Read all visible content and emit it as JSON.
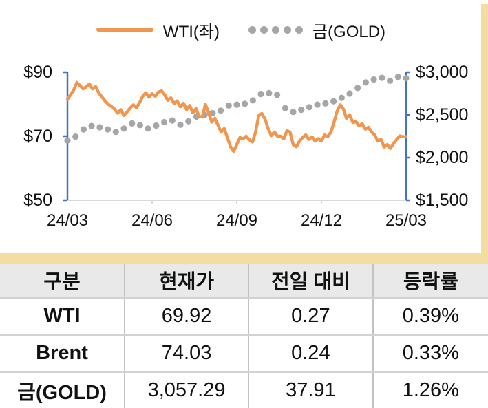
{
  "colors": {
    "wti": "#F0964F",
    "gold_dot": "#A6A6A6",
    "axis_blue": "#4472C4",
    "axis_gray": "#D9D9D9",
    "band_beige": "#F3DDA0",
    "header_bg": "#E9E9E9"
  },
  "legend": {
    "wti_label": "WTI(좌)",
    "gold_label": "금(GOLD)"
  },
  "chart_data": {
    "type": "line",
    "title": "",
    "legend_position": "top",
    "grid": false,
    "x_ticks": [
      "24/03",
      "24/06",
      "24/09",
      "24/12",
      "25/03"
    ],
    "left_axis": {
      "labels": [
        "$90",
        "$70",
        "$50"
      ],
      "min": 50,
      "max": 90
    },
    "right_axis": {
      "labels": [
        "$3,000",
        "$2,500",
        "$2,000",
        "$1,500"
      ],
      "min": 1500,
      "max": 3000
    },
    "series": [
      {
        "name": "WTI(좌)",
        "axis": "left",
        "style": "line",
        "color": "#F0964F",
        "values": [
          81.5,
          83.0,
          84.5,
          86.8,
          85.8,
          84.8,
          85.5,
          86.3,
          84.8,
          85.5,
          83.5,
          82.3,
          81.0,
          80.0,
          79.3,
          78.5,
          77.2,
          78.3,
          76.5,
          77.6,
          78.8,
          79.8,
          78.9,
          80.5,
          82.5,
          83.6,
          82.2,
          83.3,
          82.5,
          83.8,
          84.2,
          83.0,
          81.2,
          82.0,
          80.2,
          81.0,
          79.2,
          80.3,
          78.3,
          79.6,
          77.3,
          78.6,
          76.2,
          76.0,
          79.9,
          77.4,
          74.4,
          75.6,
          73.5,
          71.3,
          72.4,
          69.6,
          66.7,
          65.3,
          67.4,
          69.6,
          69.2,
          70.0,
          68.9,
          68.2,
          71.3,
          76.4,
          77.1,
          75.4,
          72.4,
          70.2,
          71.3,
          70.0,
          70.0,
          69.2,
          71.7,
          71.3,
          67.4,
          66.7,
          68.5,
          69.6,
          70.4,
          69.0,
          69.8,
          68.5,
          69.2,
          68.5,
          70.4,
          69.8,
          71.3,
          74.3,
          77.8,
          79.8,
          78.5,
          75.6,
          76.7,
          74.3,
          74.6,
          73.2,
          73.9,
          72.2,
          72.8,
          71.3,
          70.4,
          68.5,
          69.0,
          66.6,
          67.4,
          66.2,
          67.7,
          69.0,
          70.1,
          69.8,
          69.9
        ]
      },
      {
        "name": "금(GOLD)",
        "axis": "right",
        "style": "dots",
        "color": "#A6A6A6",
        "values": [
          2200,
          2245,
          2330,
          2370,
          2355,
          2330,
          2300,
          2340,
          2400,
          2380,
          2340,
          2375,
          2415,
          2435,
          2385,
          2425,
          2480,
          2500,
          2520,
          2550,
          2610,
          2620,
          2630,
          2670,
          2745,
          2755,
          2735,
          2580,
          2535,
          2560,
          2590,
          2620,
          2635,
          2660,
          2700,
          2750,
          2815,
          2880,
          2915,
          2935,
          2900,
          2945,
          2930
        ]
      }
    ]
  },
  "table": {
    "headers": [
      "구분",
      "현재가",
      "전일 대비",
      "등락률"
    ],
    "rows": [
      {
        "name": "WTI",
        "price": "69.92",
        "change": "0.27",
        "pct": "0.39%"
      },
      {
        "name": "Brent",
        "price": "74.03",
        "change": "0.24",
        "pct": "0.33%"
      },
      {
        "name": "금(GOLD)",
        "price": "3,057.29",
        "change": "37.91",
        "pct": "1.26%"
      }
    ]
  }
}
